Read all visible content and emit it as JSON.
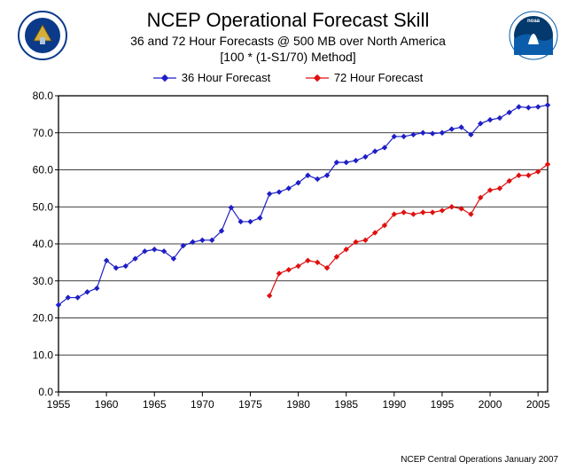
{
  "header": {
    "title": "NCEP Operational Forecast Skill",
    "subtitle1": "36 and 72 Hour Forecasts @ 500 MB over North America",
    "subtitle2": "[100 * (1-S1/70) Method]"
  },
  "legend": {
    "series1_label": "36 Hour Forecast",
    "series2_label": "72 Hour Forecast"
  },
  "footer": {
    "text": "NCEP Central Operations January 2007"
  },
  "logos": {
    "left_name": "dept-of-commerce-seal",
    "right_name": "noaa-seal"
  },
  "chart": {
    "type": "line",
    "background_color": "#ffffff",
    "plot_border_color": "#000000",
    "gridline_color": "#000000",
    "gridline_width": 0.7,
    "tick_font_size": 12,
    "xlim": [
      1955,
      2006
    ],
    "ylim": [
      0,
      80
    ],
    "xtick_step": 5,
    "ytick_step": 10,
    "ytick_format": "fixed1",
    "series": [
      {
        "name": "36 Hour Forecast",
        "color": "#1f1fc7",
        "line_width": 1.2,
        "marker": "diamond",
        "marker_size": 5,
        "x": [
          1955,
          1956,
          1957,
          1958,
          1959,
          1960,
          1961,
          1962,
          1963,
          1964,
          1965,
          1966,
          1967,
          1968,
          1969,
          1970,
          1971,
          1972,
          1973,
          1974,
          1975,
          1976,
          1977,
          1978,
          1979,
          1980,
          1981,
          1982,
          1983,
          1984,
          1985,
          1986,
          1987,
          1988,
          1989,
          1990,
          1991,
          1992,
          1993,
          1994,
          1995,
          1996,
          1997,
          1998,
          1999,
          2000,
          2001,
          2002,
          2003,
          2004,
          2005,
          2006
        ],
        "y": [
          23.5,
          25.5,
          25.5,
          27.0,
          28.0,
          35.5,
          33.5,
          34.0,
          36.0,
          38.0,
          38.5,
          38.0,
          36.0,
          39.5,
          40.5,
          41.0,
          41.0,
          43.5,
          49.8,
          46.0,
          46.0,
          47.0,
          53.5,
          54.0,
          55.0,
          56.5,
          58.5,
          57.5,
          58.5,
          62.0,
          62.0,
          62.5,
          63.5,
          65.0,
          66.0,
          69.0,
          69.0,
          69.5,
          70.0,
          69.8,
          70.0,
          71.0,
          71.5,
          69.5,
          72.5,
          73.5,
          74.0,
          75.5,
          77.0,
          76.8,
          77.0,
          77.5
        ]
      },
      {
        "name": "72 Hour Forecast",
        "color": "#e01010",
        "line_width": 1.2,
        "marker": "diamond",
        "marker_size": 5,
        "x": [
          1977,
          1978,
          1979,
          1980,
          1981,
          1982,
          1983,
          1984,
          1985,
          1986,
          1987,
          1988,
          1989,
          1990,
          1991,
          1992,
          1993,
          1994,
          1995,
          1996,
          1997,
          1998,
          1999,
          2000,
          2001,
          2002,
          2003,
          2004,
          2005,
          2006
        ],
        "y": [
          26.0,
          32.0,
          33.0,
          34.0,
          35.5,
          35.0,
          33.5,
          36.5,
          38.5,
          40.5,
          41.0,
          43.0,
          45.0,
          48.0,
          48.5,
          48.0,
          48.5,
          48.5,
          49.0,
          50.0,
          49.5,
          48.0,
          52.5,
          54.5,
          55.0,
          57.0,
          58.5,
          58.5,
          59.5,
          61.5
        ]
      }
    ]
  }
}
